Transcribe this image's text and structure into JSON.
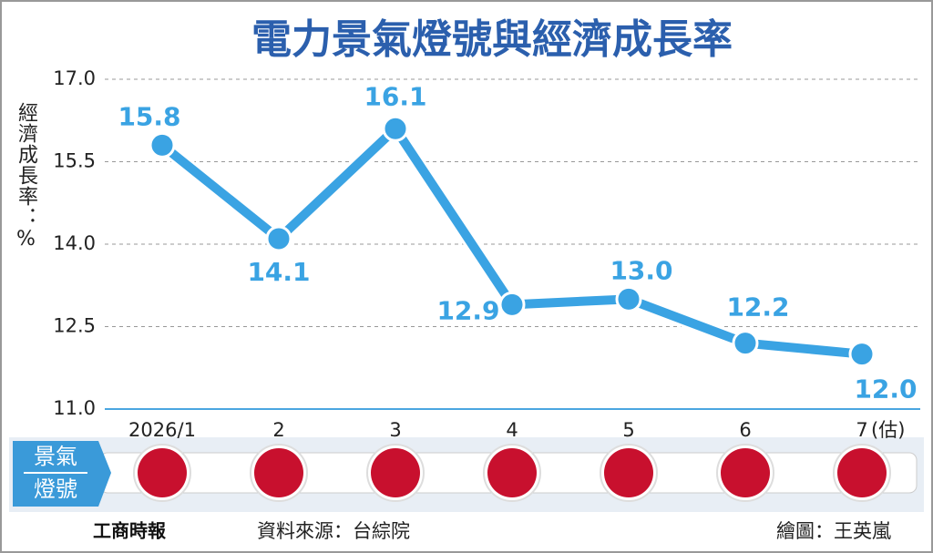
{
  "chart_data": {
    "type": "line",
    "title": "電力景氣燈號與經濟成長率",
    "y_label": "經濟成長率：%",
    "categories": [
      "2026/1",
      "2",
      "3",
      "4",
      "5",
      "6",
      "7"
    ],
    "estimate_note": "(估)",
    "values": [
      15.8,
      14.1,
      16.1,
      12.9,
      13.0,
      12.2,
      12.0
    ],
    "value_labels": [
      "15.8",
      "14.1",
      "16.1",
      "12.9",
      "13.0",
      "12.2",
      "12.0"
    ],
    "color": "#3aa3e3",
    "ylim": [
      11,
      17
    ],
    "yticks": [
      {
        "value": 11,
        "label": "11.0"
      },
      {
        "value": 12.5,
        "label": "12.5"
      },
      {
        "value": 14,
        "label": "14.0"
      },
      {
        "value": 15.5,
        "label": "15.5"
      },
      {
        "value": 17,
        "label": "17.0"
      }
    ],
    "grid": true,
    "signals": {
      "label": [
        "景氣",
        "燈號"
      ],
      "colors": [
        "#c8102e",
        "#c8102e",
        "#c8102e",
        "#c8102e",
        "#c8102e",
        "#c8102e",
        "#c8102e"
      ]
    },
    "logo": "工商時報",
    "source": "資料來源：台綜院",
    "credit": "繪圖：王英嵐"
  }
}
